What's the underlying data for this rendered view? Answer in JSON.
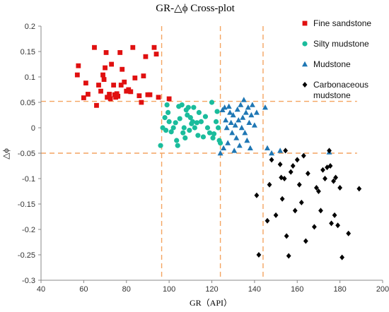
{
  "chart_data": {
    "type": "scatter",
    "title": "GR-△ϕ Cross-plot",
    "xlabel": "GR（API）",
    "ylabel": "△ϕ",
    "xlim": [
      40,
      200
    ],
    "ylim": [
      -0.3,
      0.2
    ],
    "xticks": [
      40,
      60,
      80,
      100,
      120,
      140,
      160,
      180,
      200
    ],
    "yticks": [
      -0.3,
      -0.25,
      -0.2,
      -0.15,
      -0.1,
      -0.05,
      0,
      0.05,
      0.1,
      0.15,
      0.2
    ],
    "grid": false,
    "legend_position": "right",
    "reference_lines": {
      "vertical_x": [
        96.5,
        124,
        144
      ],
      "horizontal_y": [
        0.052,
        -0.05
      ],
      "style": "dashed",
      "color": "#F4A460"
    },
    "series": [
      {
        "name": "Fine sandstone",
        "legend_lines": [
          "Fine sandstone"
        ],
        "marker": "square",
        "color": "#E01010",
        "points": [
          [
            57,
            0.104
          ],
          [
            57.5,
            0.122
          ],
          [
            60,
            0.059
          ],
          [
            61,
            0.088
          ],
          [
            62,
            0.066
          ],
          [
            65,
            0.158
          ],
          [
            66,
            0.044
          ],
          [
            67,
            0.084
          ],
          [
            68,
            0.072
          ],
          [
            69,
            0.104
          ],
          [
            69.5,
            0.095
          ],
          [
            70,
            0.118
          ],
          [
            70.5,
            0.148
          ],
          [
            71,
            0.06
          ],
          [
            72,
            0.066
          ],
          [
            72.5,
            0.057
          ],
          [
            73,
            0.125
          ],
          [
            74,
            0.084
          ],
          [
            74.5,
            0.065
          ],
          [
            75,
            0.06
          ],
          [
            75.5,
            0.067
          ],
          [
            76,
            0.062
          ],
          [
            77,
            0.148
          ],
          [
            77.5,
            0.084
          ],
          [
            78,
            0.115
          ],
          [
            79,
            0.09
          ],
          [
            80,
            0.072
          ],
          [
            81,
            0.075
          ],
          [
            82,
            0.071
          ],
          [
            83,
            0.158
          ],
          [
            84,
            0.098
          ],
          [
            86,
            0.063
          ],
          [
            87,
            0.05
          ],
          [
            88,
            0.102
          ],
          [
            89,
            0.14
          ],
          [
            90,
            0.065
          ],
          [
            91,
            0.065
          ],
          [
            93,
            0.158
          ],
          [
            94,
            0.145
          ],
          [
            95,
            0.06
          ],
          [
            100,
            0.057
          ]
        ]
      },
      {
        "name": "Silty mudstone",
        "legend_lines": [
          "Silty mudstone"
        ],
        "marker": "circle",
        "color": "#1ABC9C",
        "points": [
          [
            96,
            -0.035
          ],
          [
            97,
            0.0
          ],
          [
            98,
            0.02
          ],
          [
            98.5,
            -0.005
          ],
          [
            99,
            0.045
          ],
          [
            99.5,
            0.03
          ],
          [
            100,
            0.012
          ],
          [
            101,
            -0.008
          ],
          [
            102,
            0.0
          ],
          [
            103,
            0.01
          ],
          [
            103.5,
            -0.025
          ],
          [
            104,
            -0.035
          ],
          [
            104.5,
            0.042
          ],
          [
            105,
            0.018
          ],
          [
            106,
            0.045
          ],
          [
            106.5,
            -0.01
          ],
          [
            107,
            0.0
          ],
          [
            107.5,
            -0.02
          ],
          [
            108,
            0.035
          ],
          [
            108.5,
            0.025
          ],
          [
            109,
            0.04
          ],
          [
            109.5,
            -0.005
          ],
          [
            110,
            0.02
          ],
          [
            110.5,
            0.008
          ],
          [
            111,
            0.012
          ],
          [
            111.5,
            0.04
          ],
          [
            112,
            0.0
          ],
          [
            113,
            0.01
          ],
          [
            113.5,
            -0.015
          ],
          [
            114,
            0.03
          ],
          [
            115,
            0.012
          ],
          [
            116,
            -0.018
          ],
          [
            117,
            0.022
          ],
          [
            118,
            0.0
          ],
          [
            119,
            -0.01
          ],
          [
            120,
            0.05
          ],
          [
            120.5,
            -0.02
          ],
          [
            121,
            -0.012
          ],
          [
            122,
            0.012
          ],
          [
            122.5,
            0.032
          ],
          [
            123,
            0.0
          ],
          [
            123.5,
            -0.025
          ],
          [
            124,
            -0.03
          ]
        ]
      },
      {
        "name": "Mudstone",
        "legend_lines": [
          "Mudstone"
        ],
        "marker": "triangle",
        "color": "#1F77B4",
        "points": [
          [
            124,
            -0.05
          ],
          [
            125,
            0.035
          ],
          [
            125.5,
            -0.04
          ],
          [
            126,
            0.04
          ],
          [
            126.5,
            0.015
          ],
          [
            127,
            0.0
          ],
          [
            127.5,
            -0.03
          ],
          [
            128,
            0.042
          ],
          [
            128.5,
            0.03
          ],
          [
            129,
            0.01
          ],
          [
            129.5,
            -0.01
          ],
          [
            130,
            0.025
          ],
          [
            130.5,
            -0.045
          ],
          [
            131,
            0.005
          ],
          [
            131.5,
            -0.02
          ],
          [
            132,
            0.036
          ],
          [
            132.5,
            0.015
          ],
          [
            133,
            -0.035
          ],
          [
            133.5,
            0.045
          ],
          [
            134,
            0.0
          ],
          [
            134.5,
            0.02
          ],
          [
            135,
            0.055
          ],
          [
            135.5,
            -0.01
          ],
          [
            136,
            0.03
          ],
          [
            136.5,
            -0.025
          ],
          [
            137,
            0.04
          ],
          [
            137.5,
            0.01
          ],
          [
            138,
            -0.04
          ],
          [
            138.5,
            0.025
          ],
          [
            139,
            0.045
          ],
          [
            140,
            0.005
          ],
          [
            141,
            0.03
          ],
          [
            145,
            0.04
          ],
          [
            146,
            -0.04
          ],
          [
            148,
            -0.05
          ],
          [
            152,
            -0.045
          ],
          [
            175,
            -0.048
          ]
        ]
      },
      {
        "name": "Carbonaceous mudstone",
        "legend_lines": [
          "Carbonaceous",
          "mudstone"
        ],
        "marker": "diamond",
        "color": "#000000",
        "points": [
          [
            141,
            -0.133
          ],
          [
            142,
            -0.25
          ],
          [
            146,
            -0.183
          ],
          [
            147,
            -0.112
          ],
          [
            148,
            -0.063
          ],
          [
            150,
            -0.172
          ],
          [
            152,
            -0.072
          ],
          [
            152.5,
            -0.098
          ],
          [
            153,
            -0.14
          ],
          [
            154,
            -0.1
          ],
          [
            154.5,
            -0.045
          ],
          [
            155,
            -0.213
          ],
          [
            156,
            -0.252
          ],
          [
            157,
            -0.087
          ],
          [
            158,
            -0.075
          ],
          [
            159,
            -0.163
          ],
          [
            160,
            -0.063
          ],
          [
            161,
            -0.112
          ],
          [
            162,
            -0.147
          ],
          [
            163,
            -0.055
          ],
          [
            164,
            -0.223
          ],
          [
            165,
            -0.09
          ],
          [
            168,
            -0.195
          ],
          [
            169,
            -0.118
          ],
          [
            170,
            -0.125
          ],
          [
            171,
            -0.163
          ],
          [
            172,
            -0.083
          ],
          [
            173,
            -0.1
          ],
          [
            174,
            -0.078
          ],
          [
            175,
            -0.045
          ],
          [
            175.5,
            -0.075
          ],
          [
            176,
            -0.188
          ],
          [
            177,
            -0.105
          ],
          [
            177.5,
            -0.172
          ],
          [
            178,
            -0.098
          ],
          [
            179,
            -0.192
          ],
          [
            180,
            -0.118
          ],
          [
            181,
            -0.255
          ],
          [
            184,
            -0.208
          ],
          [
            189,
            -0.12
          ]
        ]
      }
    ]
  }
}
